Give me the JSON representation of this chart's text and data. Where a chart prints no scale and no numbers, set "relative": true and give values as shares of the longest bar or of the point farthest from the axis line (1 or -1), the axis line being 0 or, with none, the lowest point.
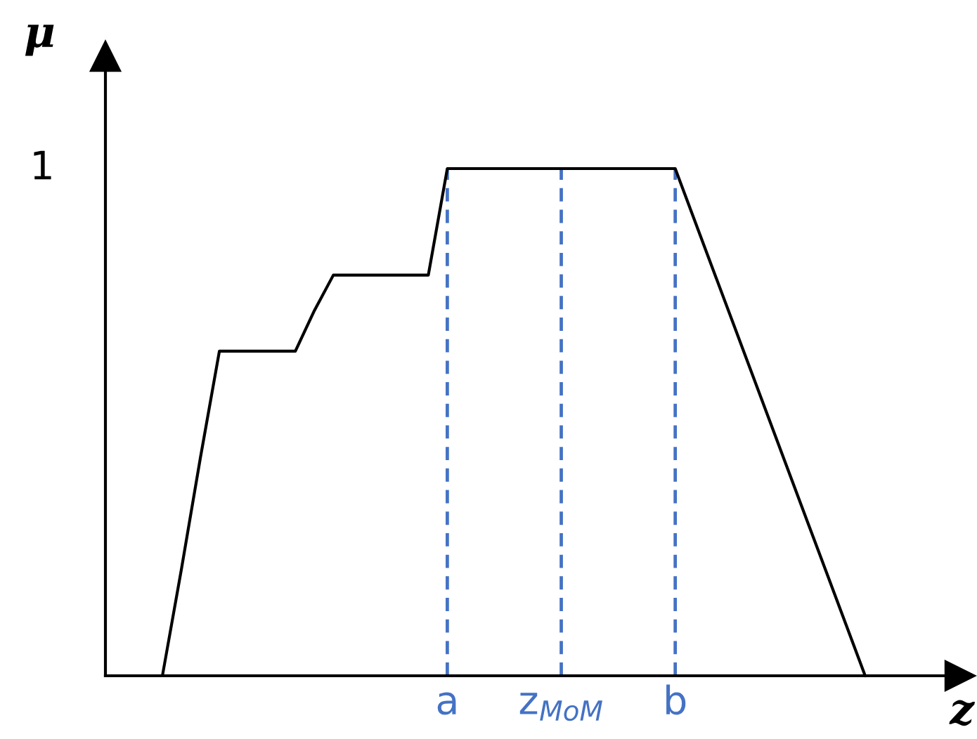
{
  "chart_data": {
    "type": "line",
    "relative": true,
    "xlabel": "z",
    "ylabel": "μ",
    "categories": [
      null,
      null,
      null,
      null,
      null,
      null,
      null,
      null,
      null,
      null,
      null,
      null,
      null,
      null,
      null,
      null,
      null,
      null,
      "a",
      null,
      null,
      null,
      null,
      null,
      "z$_{MoM}$",
      null,
      null,
      null,
      null,
      null,
      "b",
      null,
      null,
      null,
      null,
      null,
      null,
      null,
      null,
      null,
      null,
      null,
      null,
      null,
      null
    ],
    "series": [
      {
        "color": "#000000",
        "values": [
          null,
          null,
          null,
          0,
          0.21,
          0.43,
          0.64,
          0.64,
          0.64,
          0.64,
          0.64,
          0.72,
          0.79,
          0.79,
          0.79,
          0.79,
          0.79,
          0.79,
          1,
          1,
          1,
          1,
          1,
          1,
          1,
          1,
          1,
          1,
          1,
          1,
          1,
          0.9,
          0.8,
          0.7,
          0.6,
          0.5,
          0.4,
          0.3,
          0.2,
          0.1,
          0,
          null,
          null,
          null,
          null
        ]
      }
    ],
    "line_style": "solid",
    "ref_lines": [
      {
        "axis": "x",
        "value": "a",
        "color": "#4472c4",
        "line_style": "dashed"
      },
      {
        "axis": "x",
        "value": "z$_{MoM}$",
        "color": "#4472c4",
        "line_style": "dashed"
      },
      {
        "axis": "x",
        "value": "b",
        "color": "#4472c4",
        "line_style": "dashed"
      }
    ],
    "annotations": [
      "1"
    ]
  }
}
